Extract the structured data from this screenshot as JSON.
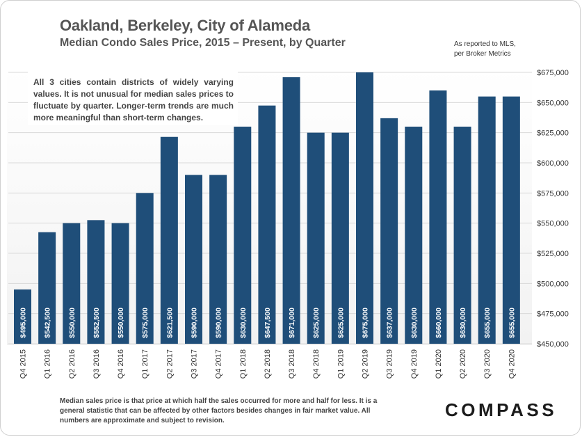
{
  "title": "Oakland, Berkeley, City of Alameda",
  "subtitle": "Median Condo Sales Price, 2015 – Present, by Quarter",
  "source_lines": [
    "As reported to MLS,",
    "per Broker Metrics"
  ],
  "note": "All 3 cities contain districts of widely varying values. It is not unusual for median sales prices to fluctuate by quarter. Longer-term trends are much more meaningful than short-term changes.",
  "footnote": "Median sales price is that price at which half the sales occurred for more and half for less. It is a general statistic that can be affected by other factors besides changes in fair market value. All numbers are approximate and subject to revision.",
  "logo": "COMPASS",
  "colors": {
    "bar": "#1f4e79",
    "grid": "#d9d9d9",
    "text": "#555555"
  },
  "chart_data": {
    "type": "bar",
    "title": "Median Condo Sales Price, 2015 – Present, by Quarter",
    "xlabel": "",
    "ylabel": "",
    "ylim": [
      450000,
      675000
    ],
    "y_axis_position": "right",
    "y_ticks": [
      "$450,000",
      "$475,000",
      "$500,000",
      "$525,000",
      "$550,000",
      "$575,000",
      "$600,000",
      "$625,000",
      "$650,000",
      "$675,000"
    ],
    "y_tick_values": [
      450000,
      475000,
      500000,
      525000,
      550000,
      575000,
      600000,
      625000,
      650000,
      675000
    ],
    "grid": true,
    "categories": [
      "Q4 2015",
      "Q1 2016",
      "Q2 2016",
      "Q3 2016",
      "Q4 2016",
      "Q1 2017",
      "Q2 2017",
      "Q3 2017",
      "Q4 2017",
      "Q1 2018",
      "Q2 2018",
      "Q3 2018",
      "Q4 2018",
      "Q1 2019",
      "Q2 2019",
      "Q3 2019",
      "Q4 2019",
      "Q1 2020",
      "Q2 2020",
      "Q3 2020",
      "Q4 2020"
    ],
    "values": [
      495000,
      542500,
      550000,
      552500,
      550000,
      575000,
      621500,
      590000,
      590000,
      630000,
      647500,
      671000,
      625000,
      625000,
      675000,
      637000,
      630000,
      660000,
      630000,
      655000,
      655000
    ],
    "data_labels": [
      "$495,000",
      "$542,500",
      "$550,000",
      "$552,500",
      "$550,000",
      "$575,000",
      "$621,500",
      "$590,000",
      "$590,000",
      "$630,000",
      "$647,500",
      "$671,000",
      "$625,000",
      "$625,000",
      "$675,000",
      "$637,000",
      "$630,000",
      "$660,000",
      "$630,000",
      "$655,000",
      "$655,000"
    ]
  }
}
